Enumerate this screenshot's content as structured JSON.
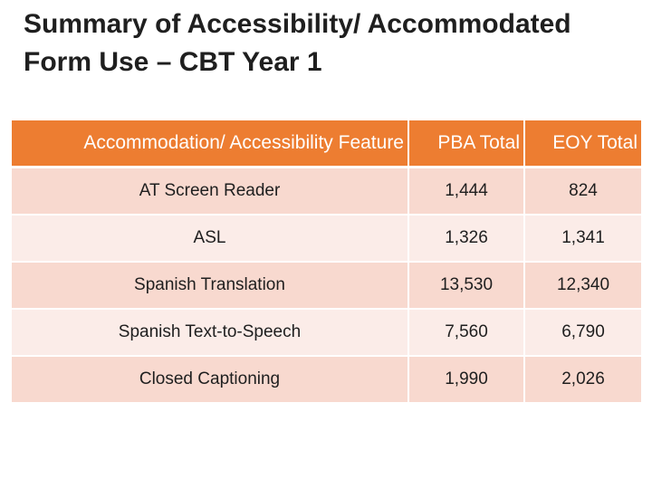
{
  "slide": {
    "title": "Summary of Accessibility/ Accommodated Form Use – CBT Year 1"
  },
  "table": {
    "headers": [
      "Accommodation/ Accessibility Feature",
      "PBA Total",
      "EOY Total"
    ],
    "rows": [
      {
        "feature": "AT Screen Reader",
        "pba_total": "1,444",
        "eoy_total": "824"
      },
      {
        "feature": "ASL",
        "pba_total": "1,326",
        "eoy_total": "1,341"
      },
      {
        "feature": "Spanish Translation",
        "pba_total": "13,530",
        "eoy_total": "12,340"
      },
      {
        "feature": "Spanish Text-to-Speech",
        "pba_total": "7,560",
        "eoy_total": "6,790"
      },
      {
        "feature": "Closed Captioning",
        "pba_total": "1,990",
        "eoy_total": "2,026"
      }
    ]
  },
  "colors": {
    "header_bg": "#ed7d31",
    "row_odd_bg": "#f8d9cf",
    "row_even_bg": "#fbece8"
  }
}
